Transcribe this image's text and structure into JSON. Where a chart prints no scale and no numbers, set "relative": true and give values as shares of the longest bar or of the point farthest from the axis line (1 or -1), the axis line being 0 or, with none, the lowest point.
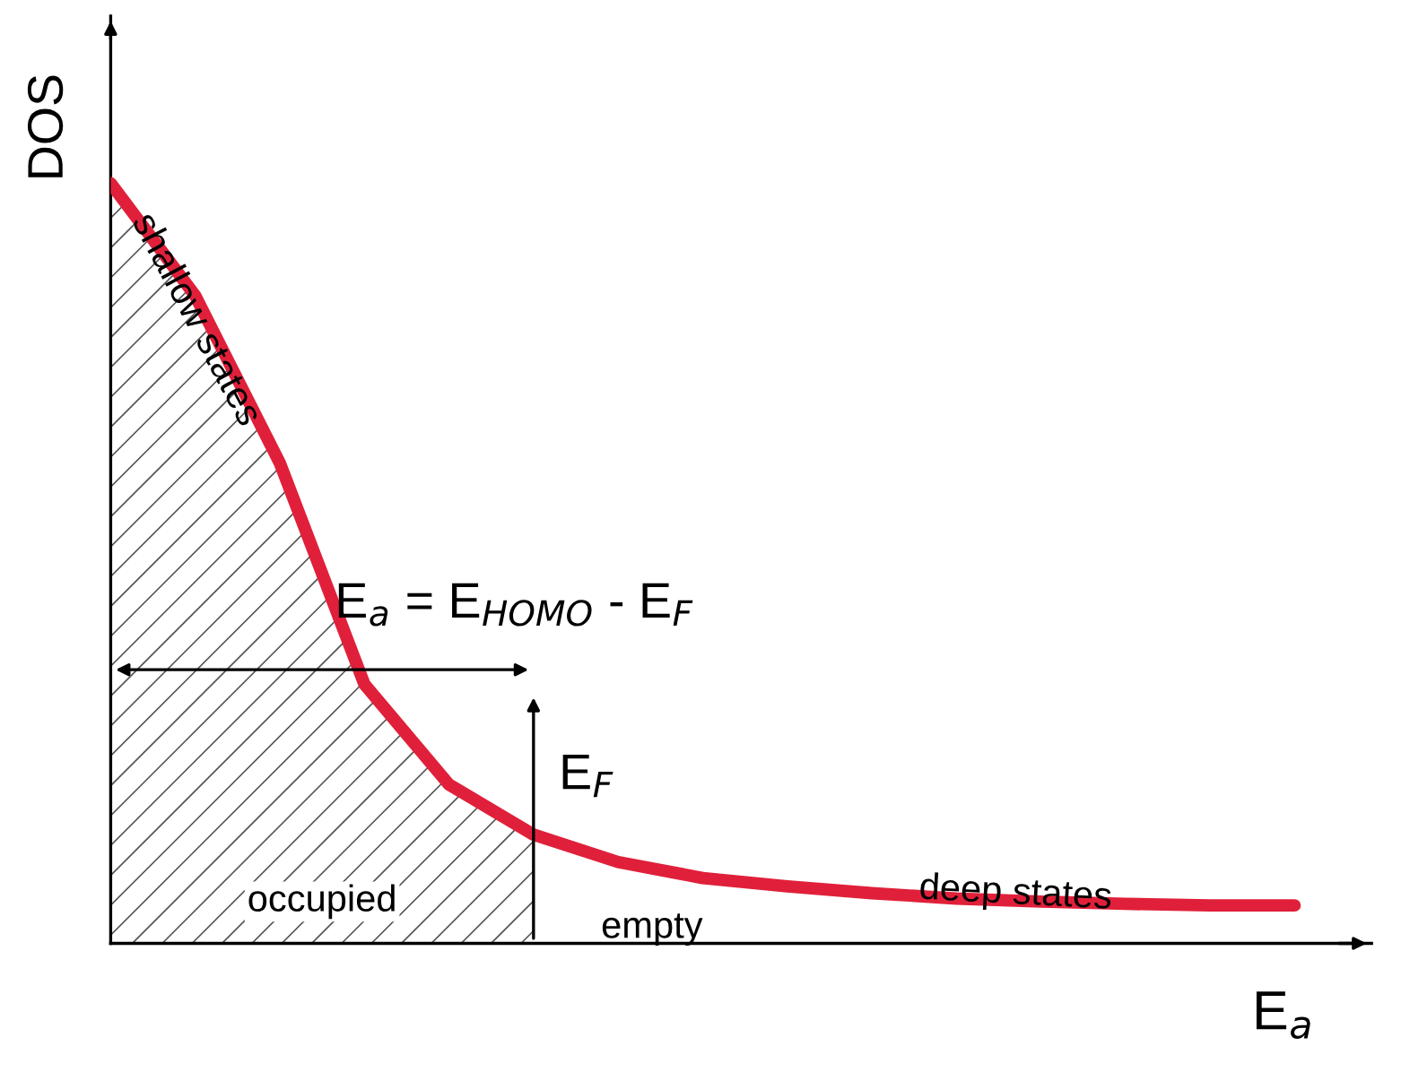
{
  "chart_data": {
    "type": "line",
    "relative": true,
    "xlabel": "E$_{a}$",
    "ylabel": "DOS",
    "categories": [
      null,
      null,
      null,
      null,
      null,
      null,
      null,
      null,
      null,
      null,
      null,
      null,
      null,
      null,
      null
    ],
    "series": [
      {
        "color": "#e0203a",
        "values": [
          1.0,
          0.852,
          0.632,
          0.341,
          0.209,
          0.143,
          0.107,
          0.086,
          0.075,
          0.066,
          0.059,
          0.055,
          0.052,
          0.05,
          0.05
        ]
      },
      {
        "type": "area",
        "color": "#555555",
        "values": [
          1.0,
          0.852,
          0.632,
          0.341,
          0.209,
          0.143,
          null,
          null,
          null,
          null,
          null,
          null,
          null,
          null,
          null
        ]
      }
    ],
    "annotations": [
      "E$_{a}$ = E$_{HOMO}$ - E$_{F}$",
      "E$_{F}$",
      "shallow states",
      "deep states",
      "occupied",
      "empty"
    ],
    "grid": false,
    "legend": false
  }
}
